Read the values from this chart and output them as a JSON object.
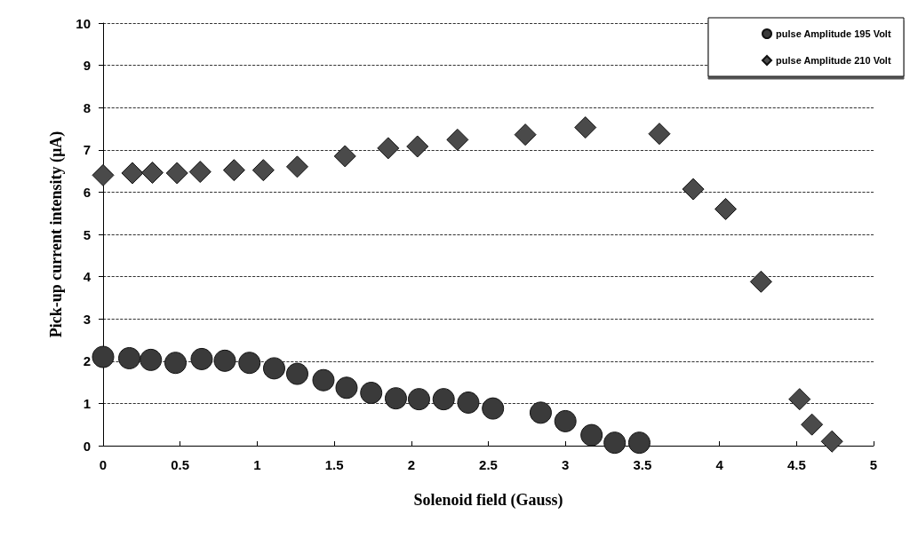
{
  "chart_data": {
    "type": "scatter",
    "xlabel": "Solenoid field (Gauss)",
    "ylabel": "Pick-up current intensity (µA)",
    "xlim": [
      0,
      5
    ],
    "xticks": [
      0,
      0.5,
      1,
      1.5,
      2,
      2.5,
      3,
      3.5,
      4,
      4.5,
      5
    ],
    "ylim": [
      0,
      10
    ],
    "yticks": [
      0,
      1,
      2,
      3,
      4,
      5,
      6,
      7,
      8,
      9,
      10
    ],
    "grid": "y",
    "legend": "top right",
    "series": [
      {
        "name": "pulse Amplitude 195 Volt",
        "color": "#3a3a3a",
        "marker": "circle",
        "x": [
          0,
          0.17,
          0.31,
          0.47,
          0.64,
          0.79,
          0.95,
          1.11,
          1.26,
          1.43,
          1.58,
          1.74,
          1.9,
          2.05,
          2.21,
          2.37,
          2.53,
          2.84,
          3.0,
          3.17,
          3.32,
          3.48
        ],
        "values": [
          2.1,
          2.07,
          2.03,
          1.96,
          2.05,
          2.01,
          1.96,
          1.83,
          1.7,
          1.55,
          1.37,
          1.25,
          1.12,
          1.1,
          1.1,
          1.02,
          0.88,
          0.78,
          0.58,
          0.25,
          0.07,
          0.07
        ]
      },
      {
        "name": "pulse Amplitude 210 Volt",
        "color": "#4a4a4a",
        "marker": "diamond",
        "x": [
          0,
          0.19,
          0.32,
          0.48,
          0.63,
          0.85,
          1.04,
          1.26,
          1.57,
          1.85,
          2.04,
          2.3,
          2.74,
          3.13,
          3.61,
          3.83,
          4.04,
          4.27,
          4.52,
          4.6,
          4.73
        ],
        "values": [
          6.4,
          6.45,
          6.46,
          6.45,
          6.48,
          6.52,
          6.52,
          6.6,
          6.85,
          7.04,
          7.08,
          7.24,
          7.36,
          7.53,
          7.38,
          6.07,
          5.6,
          3.88,
          1.1,
          0.5,
          0.1
        ]
      }
    ]
  }
}
